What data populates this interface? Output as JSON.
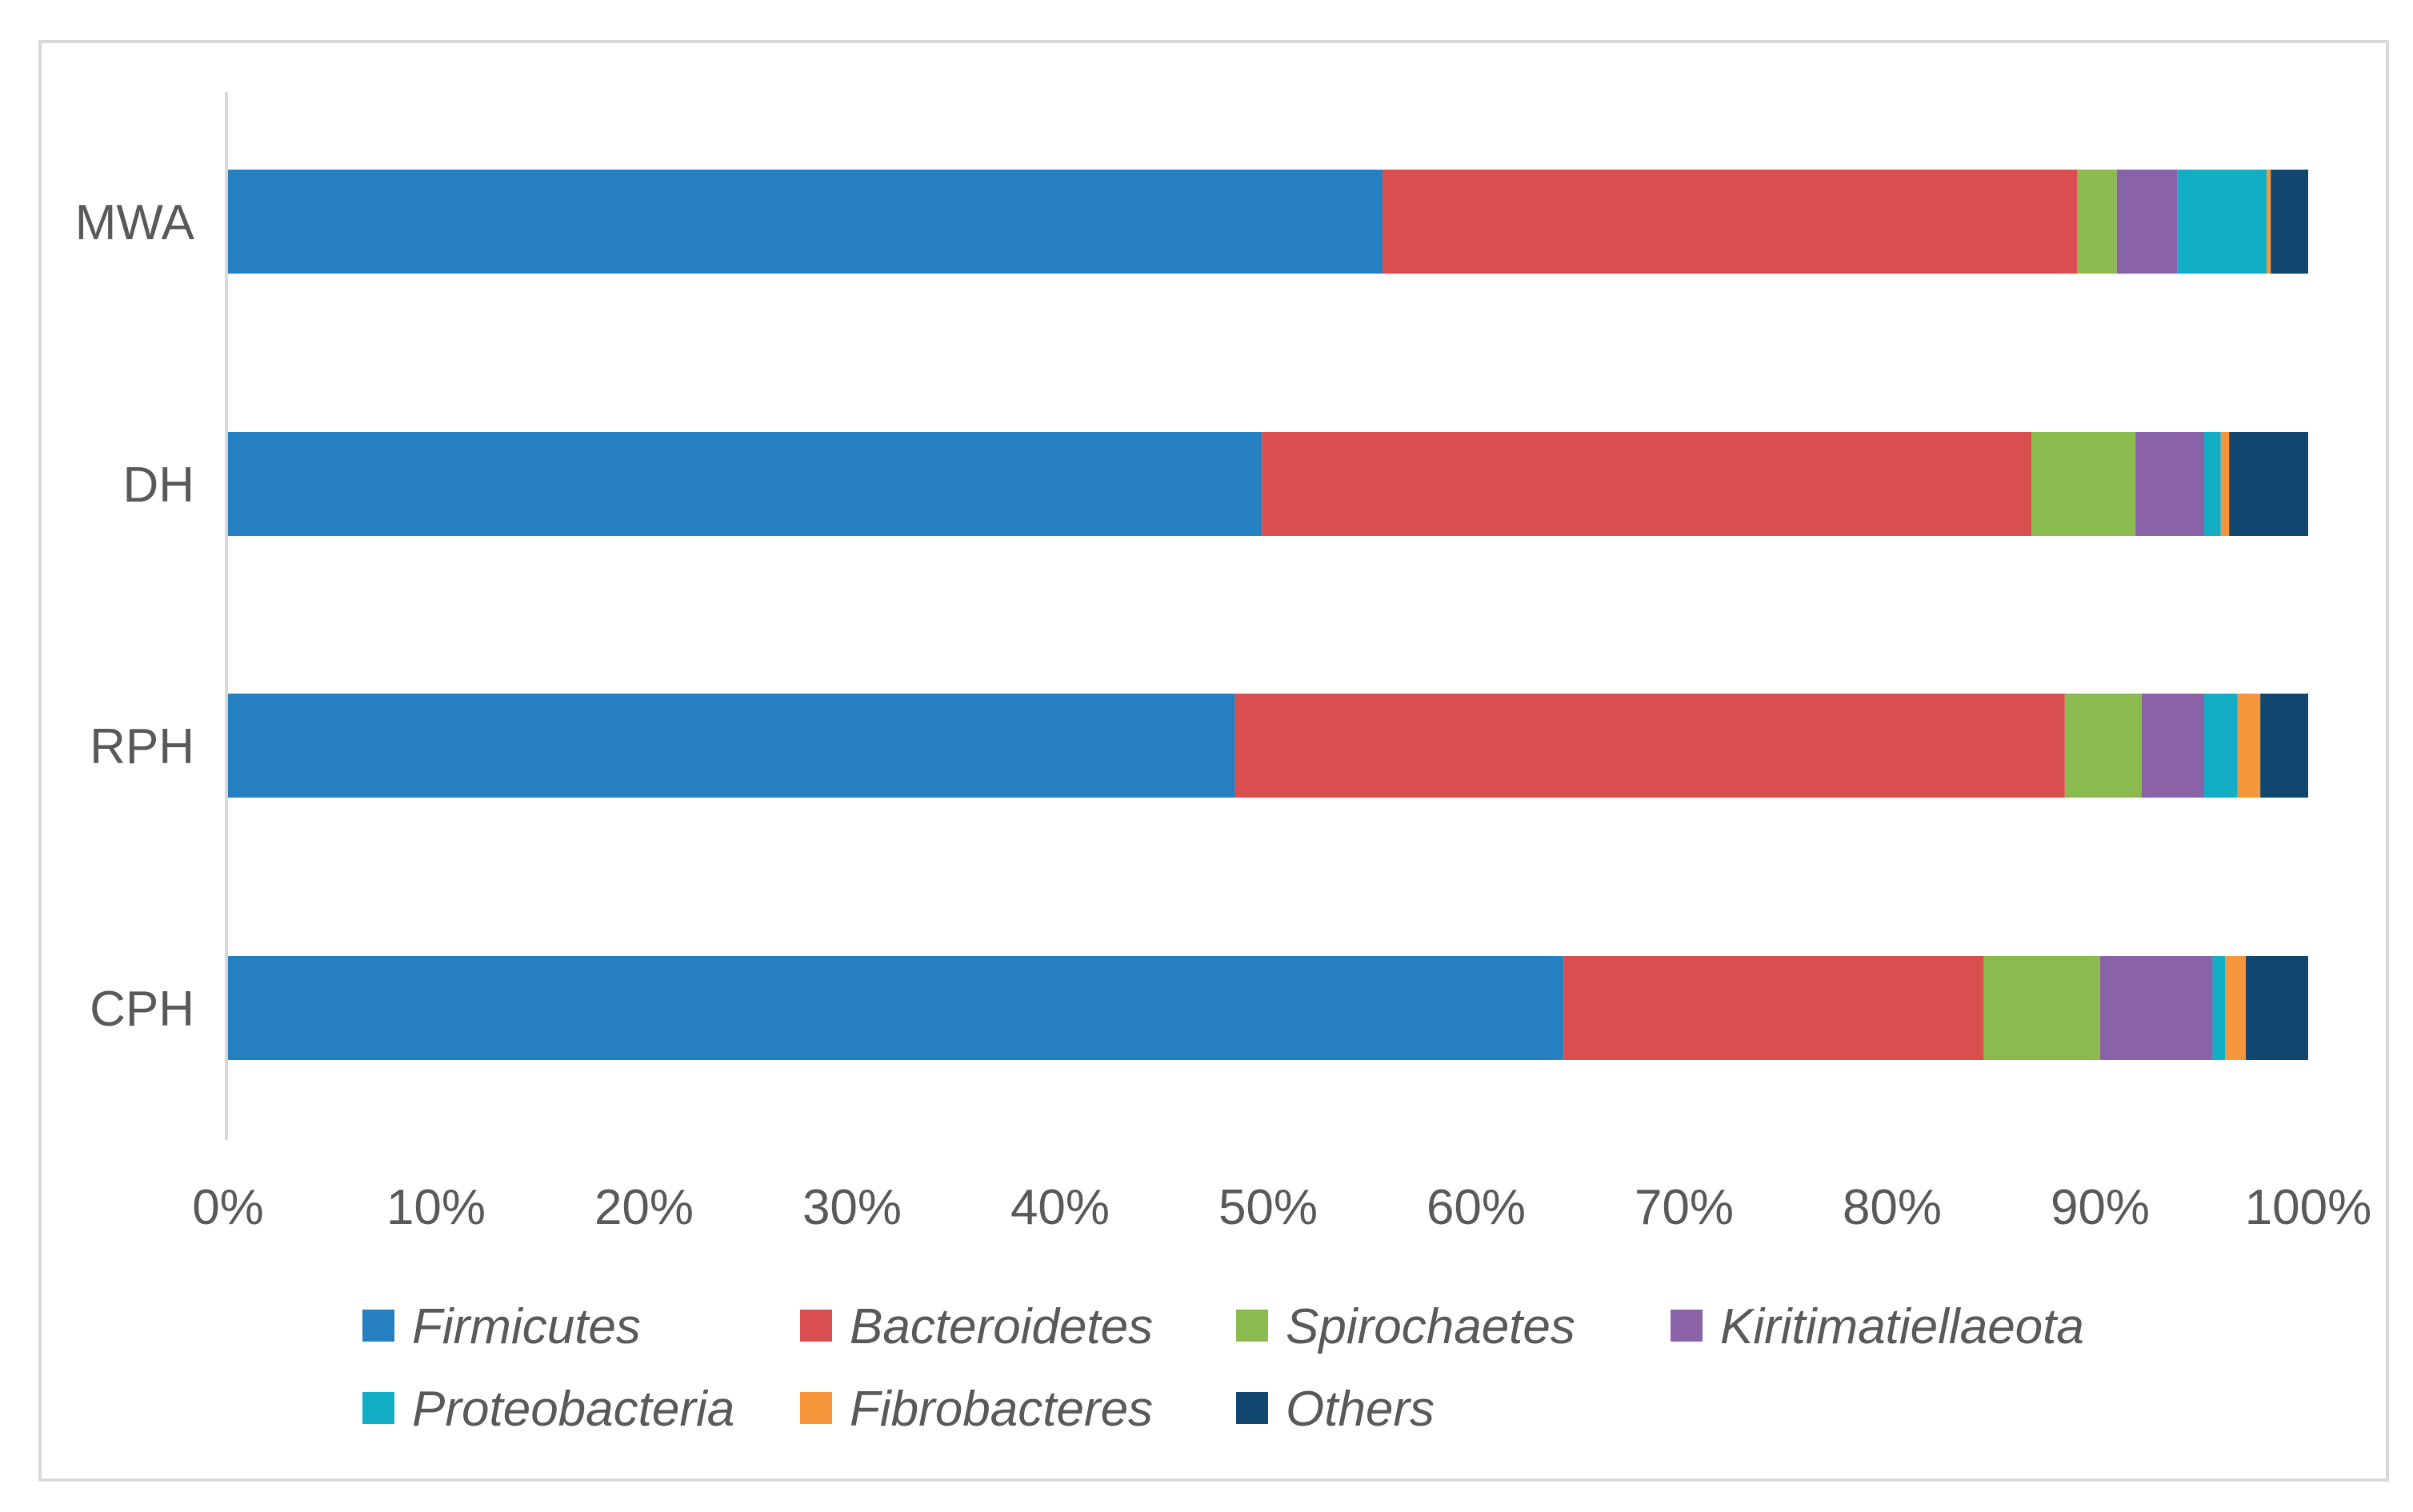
{
  "chart_data": {
    "type": "bar",
    "orientation": "horizontal",
    "stacked": true,
    "percent": true,
    "categories": [
      "MWA",
      "DH",
      "RPH",
      "CPH"
    ],
    "series": [
      {
        "name": "Firmicutes",
        "color": "#2580c2",
        "values": [
          55.5,
          49.7,
          48.4,
          64.2
        ]
      },
      {
        "name": "Bacteroidetes",
        "color": "#d94f4f",
        "values": [
          33.4,
          37.0,
          39.9,
          20.2
        ]
      },
      {
        "name": "Spirochaetes",
        "color": "#8bba4f",
        "values": [
          1.9,
          5.0,
          3.7,
          5.6
        ]
      },
      {
        "name": "Kiritimatiellaeota",
        "color": "#8a62a8",
        "values": [
          2.9,
          3.3,
          3.0,
          5.4
        ]
      },
      {
        "name": "Proteobacteria",
        "color": "#13aec6",
        "values": [
          4.3,
          0.8,
          1.6,
          0.6
        ]
      },
      {
        "name": "Fibrobacteres",
        "color": "#f7953b",
        "values": [
          0.2,
          0.4,
          1.1,
          1.0
        ]
      },
      {
        "name": "Others",
        "color": "#11466e",
        "values": [
          1.8,
          3.8,
          2.3,
          3.0
        ]
      }
    ],
    "x_ticks": [
      "0%",
      "10%",
      "20%",
      "30%",
      "40%",
      "50%",
      "60%",
      "70%",
      "80%",
      "90%",
      "100%"
    ],
    "xlim": [
      0,
      100
    ],
    "title": "",
    "xlabel": "",
    "ylabel": "",
    "grid": false,
    "legend_position": "bottom"
  }
}
